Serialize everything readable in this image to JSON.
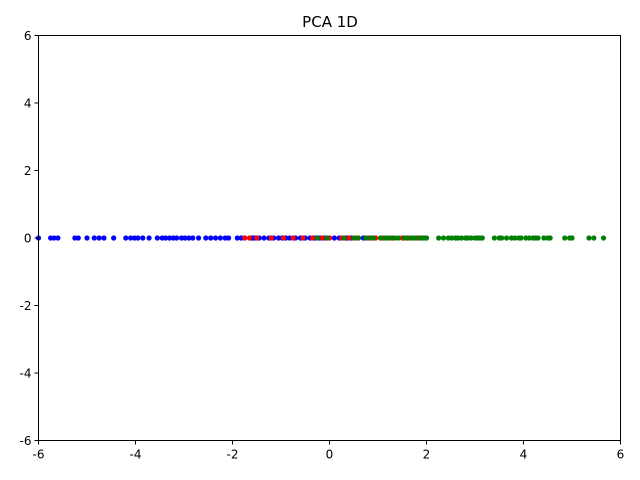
{
  "chart_data": {
    "type": "scatter",
    "title": "PCA 1D",
    "xlabel": "",
    "ylabel": "",
    "xlim": [
      -6,
      6
    ],
    "ylim": [
      -6,
      6
    ],
    "xticks": [
      -6,
      -4,
      -2,
      0,
      2,
      4,
      6
    ],
    "yticks": [
      -6,
      -4,
      -2,
      0,
      2,
      4,
      6
    ],
    "xtick_labels": [
      "-6",
      "-4",
      "-2",
      "0",
      "2",
      "4",
      "6"
    ],
    "ytick_labels": [
      "-6",
      "-4",
      "-2",
      "0",
      "2",
      "4",
      "6"
    ],
    "grid": false,
    "series": [
      {
        "color": "#0000ff",
        "x": [
          -6.0,
          -5.75,
          -5.68,
          -5.6,
          -5.25,
          -5.18,
          -5.0,
          -4.85,
          -4.75,
          -4.65,
          -4.45,
          -4.2,
          -4.1,
          -4.02,
          -3.95,
          -3.85,
          -3.72,
          -3.55,
          -3.45,
          -3.38,
          -3.3,
          -3.22,
          -3.15,
          -3.05,
          -2.98,
          -2.9,
          -2.82,
          -2.7,
          -2.55,
          -2.45,
          -2.35,
          -2.25,
          -2.15,
          -2.08,
          -1.9,
          -1.82,
          -1.75,
          -1.6,
          -1.55,
          -1.45,
          -1.35,
          -1.25,
          -1.15,
          -1.05,
          -0.98,
          -0.9,
          -0.82,
          -0.7,
          -0.6,
          -0.5,
          -0.4,
          -0.3,
          -0.2,
          -0.1,
          0.1,
          0.2,
          0.35,
          0.45,
          0.7
        ],
        "y": [
          0,
          0,
          0,
          0,
          0,
          0,
          0,
          0,
          0,
          0,
          0,
          0,
          0,
          0,
          0,
          0,
          0,
          0,
          0,
          0,
          0,
          0,
          0,
          0,
          0,
          0,
          0,
          0,
          0,
          0,
          0,
          0,
          0,
          0,
          0,
          0,
          0,
          0,
          0,
          0,
          0,
          0,
          0,
          0,
          0,
          0,
          0,
          0,
          0,
          0,
          0,
          0,
          0,
          0,
          0,
          0,
          0,
          0,
          0
        ]
      },
      {
        "color": "#ff0000",
        "x": [
          -1.75,
          -1.65,
          -1.5,
          -1.2,
          -0.95,
          -0.75,
          -0.55,
          -0.35,
          -0.15,
          0.0,
          0.25,
          0.4,
          0.55,
          0.8,
          0.95,
          1.1,
          1.3,
          1.5,
          1.65,
          1.8
        ],
        "y": [
          0,
          0,
          0,
          0,
          0,
          0,
          0,
          0,
          0,
          0,
          0,
          0,
          0,
          0,
          0,
          0,
          0,
          0,
          0,
          0
        ]
      },
      {
        "color": "#008000",
        "x": [
          -0.25,
          -0.05,
          0.3,
          0.5,
          0.6,
          0.75,
          0.85,
          0.9,
          1.05,
          1.15,
          1.2,
          1.25,
          1.35,
          1.42,
          1.55,
          1.6,
          1.7,
          1.75,
          1.85,
          1.9,
          1.95,
          2.0,
          2.25,
          2.35,
          2.45,
          2.52,
          2.6,
          2.65,
          2.72,
          2.8,
          2.85,
          2.92,
          3.0,
          3.05,
          3.1,
          3.15,
          3.4,
          3.5,
          3.55,
          3.65,
          3.75,
          3.82,
          3.9,
          3.95,
          4.05,
          4.12,
          4.2,
          4.25,
          4.3,
          4.42,
          4.5,
          4.55,
          4.85,
          4.95,
          5.0,
          5.35,
          5.45,
          5.65
        ],
        "y": [
          0,
          0,
          0,
          0,
          0,
          0,
          0,
          0,
          0,
          0,
          0,
          0,
          0,
          0,
          0,
          0,
          0,
          0,
          0,
          0,
          0,
          0,
          0,
          0,
          0,
          0,
          0,
          0,
          0,
          0,
          0,
          0,
          0,
          0,
          0,
          0,
          0,
          0,
          0,
          0,
          0,
          0,
          0,
          0,
          0,
          0,
          0,
          0,
          0,
          0,
          0,
          0,
          0,
          0,
          0,
          0,
          0,
          0
        ]
      }
    ]
  }
}
